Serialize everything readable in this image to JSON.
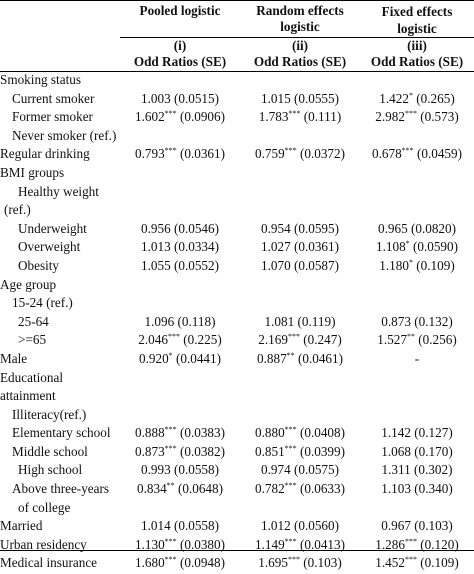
{
  "header": {
    "models": [
      {
        "name": "Pooled logistic",
        "name2": "",
        "num": "(i)",
        "sub": "Odd Ratios (SE)"
      },
      {
        "name": "Random effects",
        "name2": "logistic",
        "num": "(ii)",
        "sub": "Odd Ratios (SE)"
      },
      {
        "name": "Fixed effects",
        "name2": "logistic",
        "num": "(iii)",
        "sub": "Odd Ratios (SE)"
      }
    ]
  },
  "rows": [
    {
      "label": "Smoking status",
      "indent": 0,
      "v": [
        "",
        "",
        ""
      ],
      "s": [
        "",
        "",
        ""
      ]
    },
    {
      "label": "Current smoker",
      "indent": 1,
      "v": [
        "1.003 (0.0515)",
        "1.015 (0.0555)",
        "1.422 (0.265)"
      ],
      "s": [
        "",
        "",
        "*"
      ],
      "vpre": [
        "",
        "",
        "1.422"
      ],
      "vpost": [
        "",
        "",
        " (0.265)"
      ]
    },
    {
      "label": "Former smoker",
      "indent": 1,
      "v": [
        "1.602 (0.0906)",
        "1.783 (0.111)",
        "2.982 (0.573)"
      ],
      "s": [
        "***",
        "***",
        "***"
      ]
    },
    {
      "label": "Never smoker (ref.)",
      "indent": 1,
      "v": [
        "",
        "",
        ""
      ],
      "s": [
        "",
        "",
        ""
      ]
    },
    {
      "label": "Regular drinking",
      "indent": 0,
      "v": [
        "0.793 (0.0361)",
        "0.759 (0.0372)",
        "0.678 (0.0459)"
      ],
      "s": [
        "***",
        "***",
        "***"
      ]
    },
    {
      "label": "BMI groups",
      "indent": 0,
      "v": [
        "",
        "",
        ""
      ],
      "s": [
        "",
        "",
        ""
      ]
    },
    {
      "label": "Healthy weight",
      "indent": 2,
      "v": [
        "",
        "",
        ""
      ],
      "s": [
        "",
        "",
        ""
      ]
    },
    {
      "label": "(ref.)",
      "indent": 3,
      "v": [
        "",
        "",
        ""
      ],
      "s": [
        "",
        "",
        ""
      ]
    },
    {
      "label": "Underweight",
      "indent": 2,
      "v": [
        "0.956 (0.0546)",
        "0.954 (0.0595)",
        "0.965 (0.0820)"
      ],
      "s": [
        "",
        "",
        ""
      ]
    },
    {
      "label": "Overweight",
      "indent": 2,
      "v": [
        "1.013 (0.0334)",
        "1.027 (0.0361)",
        "1.108 (0.0590)"
      ],
      "s": [
        "",
        "",
        "*"
      ]
    },
    {
      "label": "Obesity",
      "indent": 2,
      "v": [
        "1.055 (0.0552)",
        "1.070 (0.0587)",
        "1.180 (0.109)"
      ],
      "s": [
        "",
        "",
        "*"
      ]
    },
    {
      "label": "Age group",
      "indent": 0,
      "v": [
        "",
        "",
        ""
      ],
      "s": [
        "",
        "",
        ""
      ]
    },
    {
      "label": "15-24 (ref.)",
      "indent": 1,
      "v": [
        "",
        "",
        ""
      ],
      "s": [
        "",
        "",
        ""
      ]
    },
    {
      "label": "25-64",
      "indent": 2,
      "v": [
        "1.096 (0.118)",
        "1.081 (0.119)",
        "0.873 (0.132)"
      ],
      "s": [
        "",
        "",
        ""
      ]
    },
    {
      "label": ">=65",
      "indent": 2,
      "v": [
        "2.046 (0.225)",
        "2.169 (0.247)",
        "1.527 (0.256)"
      ],
      "s": [
        "***",
        "***",
        "**"
      ]
    },
    {
      "label": "Male",
      "indent": 0,
      "v": [
        "0.920 (0.0441)",
        "0.887 (0.0461)",
        "-"
      ],
      "s": [
        "*",
        "**",
        ""
      ]
    },
    {
      "label": "Educational",
      "indent": 0,
      "v": [
        "",
        "",
        ""
      ],
      "s": [
        "",
        "",
        ""
      ]
    },
    {
      "label": "attainment",
      "indent": 0,
      "v": [
        "",
        "",
        ""
      ],
      "s": [
        "",
        "",
        ""
      ]
    },
    {
      "label": "Illiteracy(ref.)",
      "indent": 1,
      "v": [
        "",
        "",
        ""
      ],
      "s": [
        "",
        "",
        ""
      ]
    },
    {
      "label": "Elementary school",
      "indent": 1,
      "v": [
        "0.888 (0.0383)",
        "0.880 (0.0408)",
        "1.142 (0.127)"
      ],
      "s": [
        "***",
        "***",
        ""
      ]
    },
    {
      "label": "Middle school",
      "indent": 1,
      "v": [
        "0.873 (0.0382)",
        "0.851 (0.0399)",
        "1.068 (0.170)"
      ],
      "s": [
        "***",
        "***",
        ""
      ]
    },
    {
      "label": "High school",
      "indent": 2,
      "v": [
        "0.993 (0.0558)",
        "0.974 (0.0575)",
        "1.311 (0.302)"
      ],
      "s": [
        "",
        "",
        ""
      ]
    },
    {
      "label": "Above three-years",
      "indent": 1,
      "v": [
        "0.834 (0.0648)",
        "0.782 (0.0633)",
        "1.103 (0.340)"
      ],
      "s": [
        "**",
        "***",
        ""
      ]
    },
    {
      "label": "of college",
      "indent": 2,
      "v": [
        "",
        "",
        ""
      ],
      "s": [
        "",
        "",
        ""
      ]
    },
    {
      "label": "Married",
      "indent": 0,
      "v": [
        "1.014 (0.0558)",
        "1.012 (0.0560)",
        "0.967 (0.103)"
      ],
      "s": [
        "",
        "",
        ""
      ]
    },
    {
      "label": "Urban residency",
      "indent": 0,
      "v": [
        "1.130 (0.0380)",
        "1.149 (0.0413)",
        "1.286 (0.120)"
      ],
      "s": [
        "***",
        "***",
        "***"
      ]
    },
    {
      "label": "Medical insurance",
      "indent": 0,
      "v": [
        "1.680 (0.0948)",
        "1.695 (0.103)",
        "1.452 (0.109)"
      ],
      "s": [
        "***",
        "***",
        "***"
      ]
    }
  ]
}
